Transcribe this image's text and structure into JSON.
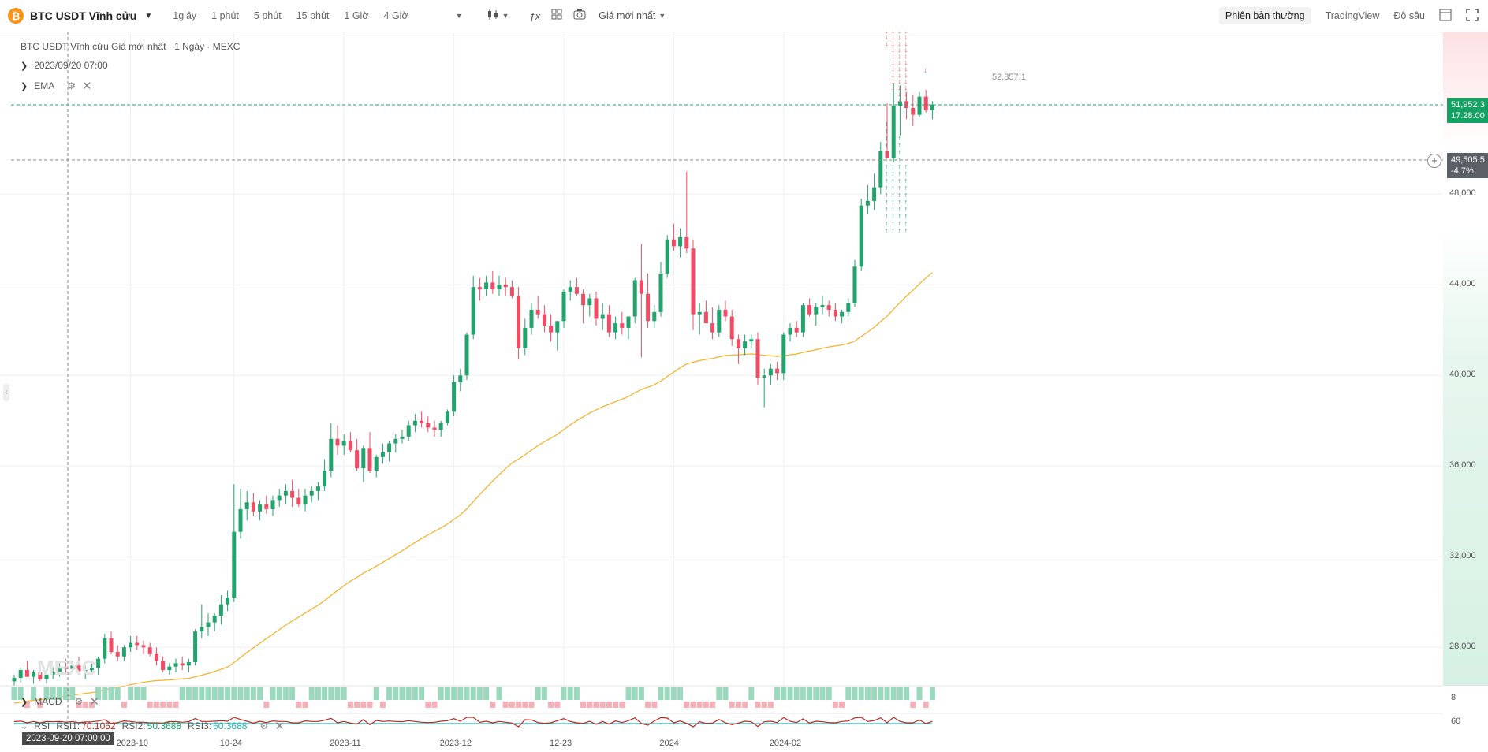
{
  "toolbar": {
    "coin_icon": "bitcoin-icon",
    "symbol": "BTC USDT Vĩnh cửu",
    "timeframes": [
      "1giây",
      "1 phút",
      "5 phút",
      "15 phút",
      "1 Giờ",
      "4 Giờ"
    ],
    "price_select": "Giá mới nhất",
    "tabs": [
      "Phiên bản thường",
      "TradingView",
      "Độ sâu"
    ],
    "icons": [
      "candles-icon",
      "fx-icon",
      "layout-icon",
      "camera-icon",
      "layout-panel-icon",
      "fullscreen-icon"
    ]
  },
  "legend": {
    "title": "BTC USDT Vĩnh cửu Giá mới nhất · 1 Ngày · MEXC",
    "date": "2023/09/20 07:00",
    "ema": "EMA",
    "macd": "MACD",
    "rsi": "RSI",
    "rsi1_label": "RSI1:",
    "rsi1_value": "70.1052",
    "rsi2_label": "RSI2:",
    "rsi2_value": "50.3688",
    "rsi3_label": "RSI3:",
    "rsi3_value": "50.3688"
  },
  "price_marks": {
    "high_label": "52,857.1",
    "last_price": "51,952.3",
    "countdown": "17:28:00",
    "cursor_price": "49,505.5",
    "cursor_pct": "-4.7%"
  },
  "chart_data": {
    "type": "candlestick",
    "title": "BTC USDT Vĩnh cửu Giá mới nhất · 1 Ngày · MEXC",
    "y_ticks": [
      "48,000",
      "44,000",
      "40,000",
      "36,000",
      "32,000",
      "28,000"
    ],
    "x_ticks": [
      "2023-10",
      "10-24",
      "2023-11",
      "2023-12",
      "12-23",
      "2024",
      "2024-02"
    ],
    "ylim": [
      26000,
      54000
    ],
    "macd_axis": [
      "8"
    ],
    "rsi_axis": [
      "60"
    ],
    "colors": {
      "up": "#22a36b",
      "down": "#ef4d64",
      "ema": "#f5b431",
      "rsi1": "#c0271f",
      "rsi2": "#26b5b7"
    },
    "candles": [
      {
        "o": 26500,
        "h": 26800,
        "l": 26300,
        "c": 26650
      },
      {
        "o": 26650,
        "h": 27100,
        "l": 26450,
        "c": 27000
      },
      {
        "o": 27000,
        "h": 27400,
        "l": 26700,
        "c": 26700
      },
      {
        "o": 26700,
        "h": 27000,
        "l": 26400,
        "c": 26900
      },
      {
        "o": 26900,
        "h": 27200,
        "l": 26500,
        "c": 26600
      },
      {
        "o": 26600,
        "h": 26900,
        "l": 26400,
        "c": 26800
      },
      {
        "o": 26800,
        "h": 27100,
        "l": 26600,
        "c": 26900
      },
      {
        "o": 26900,
        "h": 27300,
        "l": 26700,
        "c": 27100
      },
      {
        "o": 27100,
        "h": 27500,
        "l": 26800,
        "c": 27050
      },
      {
        "o": 27050,
        "h": 27400,
        "l": 26900,
        "c": 27200
      },
      {
        "o": 27200,
        "h": 27600,
        "l": 26900,
        "c": 26950
      },
      {
        "o": 26950,
        "h": 27200,
        "l": 26600,
        "c": 27000
      },
      {
        "o": 27000,
        "h": 27300,
        "l": 26800,
        "c": 27100
      },
      {
        "o": 27100,
        "h": 27600,
        "l": 26800,
        "c": 27500
      },
      {
        "o": 27500,
        "h": 28600,
        "l": 27300,
        "c": 28400
      },
      {
        "o": 28400,
        "h": 28700,
        "l": 27700,
        "c": 27800
      },
      {
        "o": 27800,
        "h": 28100,
        "l": 27400,
        "c": 27600
      },
      {
        "o": 27600,
        "h": 28100,
        "l": 27400,
        "c": 28000
      },
      {
        "o": 28000,
        "h": 28500,
        "l": 27800,
        "c": 28200
      },
      {
        "o": 28200,
        "h": 28500,
        "l": 27900,
        "c": 28100
      },
      {
        "o": 28100,
        "h": 28300,
        "l": 27700,
        "c": 28000
      },
      {
        "o": 28000,
        "h": 28200,
        "l": 27600,
        "c": 27700
      },
      {
        "o": 27700,
        "h": 28000,
        "l": 27200,
        "c": 27400
      },
      {
        "o": 27400,
        "h": 27600,
        "l": 26900,
        "c": 27000
      },
      {
        "o": 27000,
        "h": 27300,
        "l": 26800,
        "c": 27150
      },
      {
        "o": 27150,
        "h": 27500,
        "l": 26900,
        "c": 27300
      },
      {
        "o": 27300,
        "h": 27600,
        "l": 27000,
        "c": 27200
      },
      {
        "o": 27200,
        "h": 27500,
        "l": 26900,
        "c": 27350
      },
      {
        "o": 27350,
        "h": 28800,
        "l": 27200,
        "c": 28700
      },
      {
        "o": 28700,
        "h": 29900,
        "l": 28400,
        "c": 28900
      },
      {
        "o": 28900,
        "h": 29500,
        "l": 28500,
        "c": 29100
      },
      {
        "o": 29100,
        "h": 29500,
        "l": 28700,
        "c": 29400
      },
      {
        "o": 29400,
        "h": 30300,
        "l": 29000,
        "c": 29900
      },
      {
        "o": 29900,
        "h": 30500,
        "l": 29600,
        "c": 30200
      },
      {
        "o": 30200,
        "h": 35200,
        "l": 30000,
        "c": 33100
      },
      {
        "o": 33100,
        "h": 35000,
        "l": 32800,
        "c": 34100
      },
      {
        "o": 34100,
        "h": 34900,
        "l": 33600,
        "c": 34400
      },
      {
        "o": 34400,
        "h": 34800,
        "l": 33800,
        "c": 34000
      },
      {
        "o": 34000,
        "h": 34500,
        "l": 33600,
        "c": 34300
      },
      {
        "o": 34300,
        "h": 34700,
        "l": 33900,
        "c": 34100
      },
      {
        "o": 34100,
        "h": 34700,
        "l": 33800,
        "c": 34500
      },
      {
        "o": 34500,
        "h": 35000,
        "l": 34200,
        "c": 34700
      },
      {
        "o": 34700,
        "h": 35200,
        "l": 34300,
        "c": 34900
      },
      {
        "o": 34900,
        "h": 35400,
        "l": 34200,
        "c": 34600
      },
      {
        "o": 34600,
        "h": 35000,
        "l": 34200,
        "c": 34300
      },
      {
        "o": 34300,
        "h": 35000,
        "l": 34000,
        "c": 34700
      },
      {
        "o": 34700,
        "h": 35100,
        "l": 34400,
        "c": 34900
      },
      {
        "o": 34900,
        "h": 35300,
        "l": 34500,
        "c": 35100
      },
      {
        "o": 35100,
        "h": 36300,
        "l": 34900,
        "c": 35800
      },
      {
        "o": 35800,
        "h": 37900,
        "l": 35500,
        "c": 37200
      },
      {
        "o": 37200,
        "h": 37800,
        "l": 36500,
        "c": 36900
      },
      {
        "o": 36900,
        "h": 37400,
        "l": 36500,
        "c": 37100
      },
      {
        "o": 37100,
        "h": 37500,
        "l": 36600,
        "c": 36700
      },
      {
        "o": 36700,
        "h": 37200,
        "l": 35800,
        "c": 35900
      },
      {
        "o": 35900,
        "h": 36900,
        "l": 35300,
        "c": 36800
      },
      {
        "o": 36800,
        "h": 37500,
        "l": 35700,
        "c": 35800
      },
      {
        "o": 35800,
        "h": 36500,
        "l": 35500,
        "c": 36400
      },
      {
        "o": 36400,
        "h": 37000,
        "l": 36100,
        "c": 36600
      },
      {
        "o": 36600,
        "h": 37100,
        "l": 36200,
        "c": 37000
      },
      {
        "o": 37000,
        "h": 37400,
        "l": 36600,
        "c": 37200
      },
      {
        "o": 37200,
        "h": 37600,
        "l": 37000,
        "c": 37300
      },
      {
        "o": 37300,
        "h": 38000,
        "l": 37100,
        "c": 37800
      },
      {
        "o": 37800,
        "h": 38300,
        "l": 37500,
        "c": 38000
      },
      {
        "o": 38000,
        "h": 38400,
        "l": 37700,
        "c": 37900
      },
      {
        "o": 37900,
        "h": 38200,
        "l": 37500,
        "c": 37700
      },
      {
        "o": 37700,
        "h": 38000,
        "l": 37300,
        "c": 37600
      },
      {
        "o": 37600,
        "h": 38000,
        "l": 37300,
        "c": 37900
      },
      {
        "o": 37900,
        "h": 38500,
        "l": 37800,
        "c": 38400
      },
      {
        "o": 38400,
        "h": 40000,
        "l": 38200,
        "c": 39700
      },
      {
        "o": 39700,
        "h": 40300,
        "l": 39300,
        "c": 40000
      },
      {
        "o": 40000,
        "h": 41900,
        "l": 39800,
        "c": 41800
      },
      {
        "o": 41800,
        "h": 44400,
        "l": 41600,
        "c": 43900
      },
      {
        "o": 43900,
        "h": 44300,
        "l": 43300,
        "c": 43800
      },
      {
        "o": 43800,
        "h": 44400,
        "l": 43500,
        "c": 44100
      },
      {
        "o": 44100,
        "h": 44600,
        "l": 43600,
        "c": 43800
      },
      {
        "o": 43800,
        "h": 44400,
        "l": 43500,
        "c": 44000
      },
      {
        "o": 44000,
        "h": 44300,
        "l": 43500,
        "c": 43900
      },
      {
        "o": 43900,
        "h": 44200,
        "l": 43400,
        "c": 43500
      },
      {
        "o": 43500,
        "h": 43900,
        "l": 40700,
        "c": 41200
      },
      {
        "o": 41200,
        "h": 42500,
        "l": 40900,
        "c": 42100
      },
      {
        "o": 42100,
        "h": 43200,
        "l": 41800,
        "c": 42900
      },
      {
        "o": 42900,
        "h": 43500,
        "l": 42500,
        "c": 42700
      },
      {
        "o": 42700,
        "h": 43100,
        "l": 41900,
        "c": 42200
      },
      {
        "o": 42200,
        "h": 42700,
        "l": 41500,
        "c": 41900
      },
      {
        "o": 41900,
        "h": 42400,
        "l": 41100,
        "c": 42400
      },
      {
        "o": 42400,
        "h": 43800,
        "l": 42100,
        "c": 43700
      },
      {
        "o": 43700,
        "h": 44200,
        "l": 43300,
        "c": 43900
      },
      {
        "o": 43900,
        "h": 44300,
        "l": 43500,
        "c": 43600
      },
      {
        "o": 43600,
        "h": 43800,
        "l": 42300,
        "c": 43100
      },
      {
        "o": 43100,
        "h": 43600,
        "l": 42600,
        "c": 43400
      },
      {
        "o": 43400,
        "h": 43700,
        "l": 42200,
        "c": 42500
      },
      {
        "o": 42500,
        "h": 43200,
        "l": 42000,
        "c": 42700
      },
      {
        "o": 42700,
        "h": 43100,
        "l": 41700,
        "c": 41900
      },
      {
        "o": 41900,
        "h": 42600,
        "l": 41600,
        "c": 42300
      },
      {
        "o": 42300,
        "h": 42800,
        "l": 41800,
        "c": 42100
      },
      {
        "o": 42100,
        "h": 42600,
        "l": 41600,
        "c": 42600
      },
      {
        "o": 42600,
        "h": 44300,
        "l": 42300,
        "c": 44200
      },
      {
        "o": 44200,
        "h": 45800,
        "l": 40800,
        "c": 43600
      },
      {
        "o": 43600,
        "h": 44500,
        "l": 42100,
        "c": 42400
      },
      {
        "o": 42400,
        "h": 43100,
        "l": 42100,
        "c": 42800
      },
      {
        "o": 42800,
        "h": 45000,
        "l": 42600,
        "c": 44500
      },
      {
        "o": 44500,
        "h": 46200,
        "l": 44300,
        "c": 46000
      },
      {
        "o": 46000,
        "h": 46700,
        "l": 45500,
        "c": 45700
      },
      {
        "o": 45700,
        "h": 46500,
        "l": 45200,
        "c": 46100
      },
      {
        "o": 46100,
        "h": 49000,
        "l": 45400,
        "c": 45600
      },
      {
        "o": 45600,
        "h": 46000,
        "l": 42000,
        "c": 42700
      },
      {
        "o": 42700,
        "h": 43200,
        "l": 41800,
        "c": 42800
      },
      {
        "o": 42800,
        "h": 43300,
        "l": 42500,
        "c": 42300
      },
      {
        "o": 42300,
        "h": 43000,
        "l": 41600,
        "c": 41900
      },
      {
        "o": 41900,
        "h": 43100,
        "l": 41700,
        "c": 42900
      },
      {
        "o": 42900,
        "h": 43300,
        "l": 42400,
        "c": 42600
      },
      {
        "o": 42600,
        "h": 42900,
        "l": 41300,
        "c": 41600
      },
      {
        "o": 41600,
        "h": 41800,
        "l": 40500,
        "c": 41200
      },
      {
        "o": 41200,
        "h": 41800,
        "l": 40900,
        "c": 41500
      },
      {
        "o": 41500,
        "h": 41800,
        "l": 41200,
        "c": 41600
      },
      {
        "o": 41600,
        "h": 41900,
        "l": 39600,
        "c": 39900
      },
      {
        "o": 39900,
        "h": 40300,
        "l": 38600,
        "c": 40000
      },
      {
        "o": 40000,
        "h": 40500,
        "l": 39600,
        "c": 40300
      },
      {
        "o": 40300,
        "h": 40600,
        "l": 39800,
        "c": 40100
      },
      {
        "o": 40100,
        "h": 41900,
        "l": 39800,
        "c": 41800
      },
      {
        "o": 41800,
        "h": 42300,
        "l": 41500,
        "c": 42100
      },
      {
        "o": 42100,
        "h": 42400,
        "l": 41700,
        "c": 41900
      },
      {
        "o": 41900,
        "h": 43200,
        "l": 41700,
        "c": 43100
      },
      {
        "o": 43100,
        "h": 43400,
        "l": 42600,
        "c": 42700
      },
      {
        "o": 42700,
        "h": 43200,
        "l": 42200,
        "c": 43000
      },
      {
        "o": 43000,
        "h": 43500,
        "l": 42700,
        "c": 43100
      },
      {
        "o": 43100,
        "h": 43300,
        "l": 42600,
        "c": 42900
      },
      {
        "o": 42900,
        "h": 43200,
        "l": 42400,
        "c": 42600
      },
      {
        "o": 42600,
        "h": 42900,
        "l": 42300,
        "c": 42800
      },
      {
        "o": 42800,
        "h": 43400,
        "l": 42600,
        "c": 43200
      },
      {
        "o": 43200,
        "h": 45100,
        "l": 43000,
        "c": 44800
      },
      {
        "o": 44800,
        "h": 47800,
        "l": 44600,
        "c": 47500
      },
      {
        "o": 47500,
        "h": 48400,
        "l": 47100,
        "c": 47700
      },
      {
        "o": 47700,
        "h": 48900,
        "l": 47300,
        "c": 48300
      },
      {
        "o": 48300,
        "h": 50300,
        "l": 48000,
        "c": 49900
      },
      {
        "o": 49900,
        "h": 52000,
        "l": 49600,
        "c": 49600
      },
      {
        "o": 49600,
        "h": 52900,
        "l": 49400,
        "c": 51900
      },
      {
        "o": 51900,
        "h": 52800,
        "l": 50600,
        "c": 52100
      },
      {
        "o": 52100,
        "h": 52500,
        "l": 51300,
        "c": 51800
      },
      {
        "o": 51800,
        "h": 52400,
        "l": 51000,
        "c": 51500
      },
      {
        "o": 51500,
        "h": 52500,
        "l": 51400,
        "c": 52300
      },
      {
        "o": 52300,
        "h": 52600,
        "l": 51600,
        "c": 51700
      },
      {
        "o": 51700,
        "h": 52100,
        "l": 51300,
        "c": 51950
      }
    ]
  }
}
